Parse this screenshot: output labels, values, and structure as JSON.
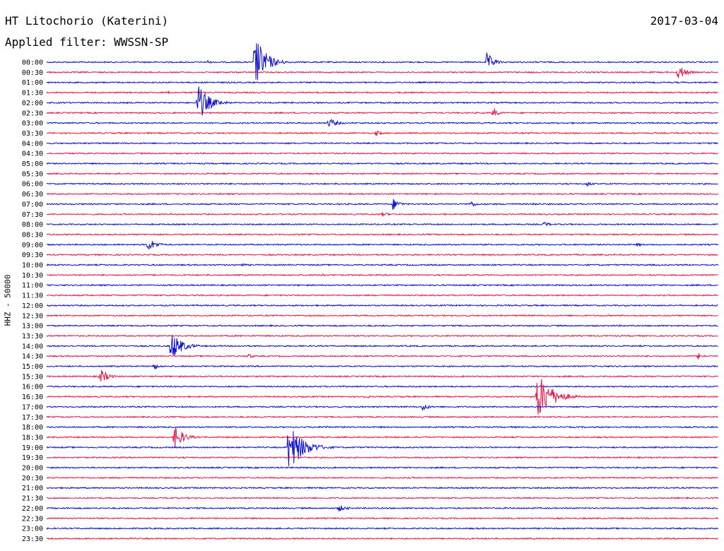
{
  "chart_data": {
    "type": "line",
    "title": "HT Litochorio (Katerini)",
    "subtitle": "Applied filter: WWSSN-SP",
    "date": "2017-03-04",
    "ylabel": "HHZ - 50000",
    "trace_colors": [
      "#1010d0",
      "#e8194a"
    ],
    "rows": [
      "00:00",
      "00:30",
      "01:00",
      "01:30",
      "02:00",
      "02:30",
      "03:00",
      "03:30",
      "04:00",
      "04:30",
      "05:00",
      "05:30",
      "06:00",
      "06:30",
      "07:00",
      "07:30",
      "08:00",
      "08:30",
      "09:00",
      "09:30",
      "10:00",
      "10:30",
      "11:00",
      "11:30",
      "12:00",
      "12:30",
      "13:00",
      "13:30",
      "14:00",
      "14:30",
      "15:00",
      "15:30",
      "16:00",
      "16:30",
      "17:00",
      "17:30",
      "18:00",
      "18:30",
      "19:00",
      "19:30",
      "20:00",
      "20:30",
      "21:00",
      "21:30",
      "22:00",
      "22:30",
      "23:00",
      "23:30"
    ],
    "events": [
      {
        "row": 0,
        "x": 0.31,
        "amp": 40,
        "dur": 0.03
      },
      {
        "row": 0,
        "x": 0.655,
        "amp": 14,
        "dur": 0.02
      },
      {
        "row": 0,
        "x": 0.24,
        "amp": 3,
        "dur": 0.01
      },
      {
        "row": 1,
        "x": 0.94,
        "amp": 12,
        "dur": 0.02
      },
      {
        "row": 3,
        "x": 0.18,
        "amp": 3,
        "dur": 0.01
      },
      {
        "row": 4,
        "x": 0.225,
        "amp": 28,
        "dur": 0.03
      },
      {
        "row": 5,
        "x": 0.665,
        "amp": 8,
        "dur": 0.015
      },
      {
        "row": 6,
        "x": 0.42,
        "amp": 7,
        "dur": 0.025
      },
      {
        "row": 7,
        "x": 0.49,
        "amp": 5,
        "dur": 0.015
      },
      {
        "row": 12,
        "x": 0.805,
        "amp": 4,
        "dur": 0.015
      },
      {
        "row": 14,
        "x": 0.515,
        "amp": 9,
        "dur": 0.02
      },
      {
        "row": 14,
        "x": 0.63,
        "amp": 5,
        "dur": 0.02
      },
      {
        "row": 14,
        "x": 0.725,
        "amp": 3,
        "dur": 0.01
      },
      {
        "row": 15,
        "x": 0.5,
        "amp": 3,
        "dur": 0.025
      },
      {
        "row": 16,
        "x": 0.74,
        "amp": 4,
        "dur": 0.02
      },
      {
        "row": 18,
        "x": 0.15,
        "amp": 10,
        "dur": 0.025
      },
      {
        "row": 18,
        "x": 0.88,
        "amp": 3,
        "dur": 0.015
      },
      {
        "row": 20,
        "x": 0.29,
        "amp": 3,
        "dur": 0.015
      },
      {
        "row": 21,
        "x": 0.41,
        "amp": 3,
        "dur": 0.015
      },
      {
        "row": 28,
        "x": 0.185,
        "amp": 22,
        "dur": 0.03
      },
      {
        "row": 28,
        "x": 0.2,
        "amp": 4,
        "dur": 0.01
      },
      {
        "row": 29,
        "x": 0.3,
        "amp": 4,
        "dur": 0.015
      },
      {
        "row": 29,
        "x": 0.97,
        "amp": 5,
        "dur": 0.015
      },
      {
        "row": 30,
        "x": 0.16,
        "amp": 5,
        "dur": 0.015
      },
      {
        "row": 31,
        "x": 0.08,
        "amp": 12,
        "dur": 0.02
      },
      {
        "row": 33,
        "x": 0.475,
        "amp": 4,
        "dur": 0.01
      },
      {
        "row": 33,
        "x": 0.73,
        "amp": 36,
        "dur": 0.04
      },
      {
        "row": 34,
        "x": 0.56,
        "amp": 7,
        "dur": 0.015
      },
      {
        "row": 36,
        "x": 0.415,
        "amp": 3,
        "dur": 0.01
      },
      {
        "row": 37,
        "x": 0.19,
        "amp": 18,
        "dur": 0.025
      },
      {
        "row": 38,
        "x": 0.36,
        "amp": 36,
        "dur": 0.04
      },
      {
        "row": 44,
        "x": 0.435,
        "amp": 5,
        "dur": 0.025
      }
    ]
  }
}
